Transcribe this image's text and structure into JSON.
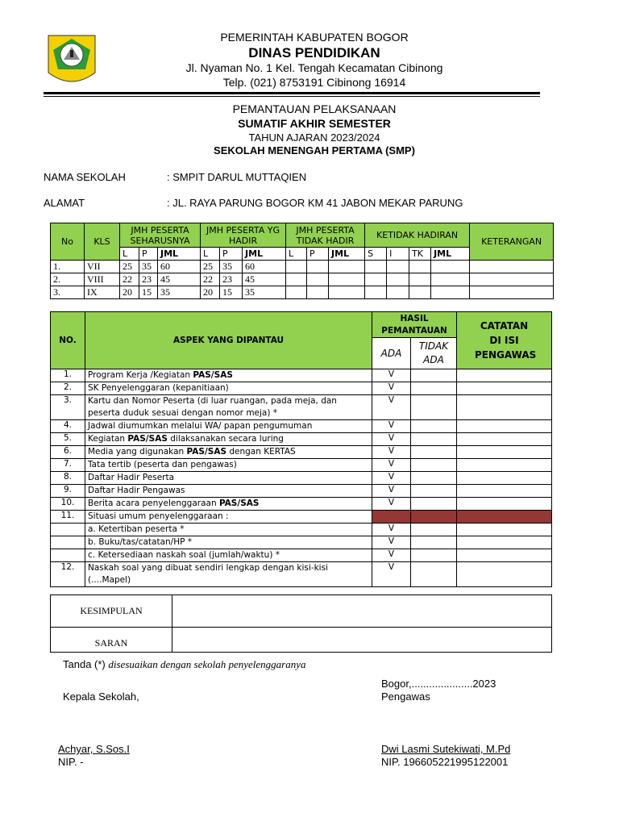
{
  "header": {
    "line1": "PEMERINTAH  KABUPATEN BOGOR",
    "line2": "DINAS PENDIDIKAN",
    "line3": "Jl. Nyaman No. 1  Kel. Tengah  Kecamatan Cibinong",
    "line4": "Telp. (021) 8753191 Cibinong 16914",
    "logo_text": "TEGAR BERIMAN"
  },
  "title": {
    "line1": "PEMANTAUAN PELAKSANAAN",
    "line2": "SUMATIF AKHIR SEMESTER",
    "line3": "TAHUN AJARAN 2023/2024",
    "line4": "SEKOLAH MENENGAH PERTAMA (SMP)"
  },
  "school": {
    "name_label": "NAMA SEKOLAH",
    "name_value": ":  SMPIT DARUL MUTTAQIEN",
    "addr_label": "ALAMAT",
    "addr_value": ":  JL. RAYA PARUNG BOGOR KM 41 JABON MEKAR PARUNG"
  },
  "table1": {
    "headers": {
      "no": "No",
      "kls": "KLS",
      "g1": "JMH PESERTA SEHARUSNYA",
      "g2": "JMH PESERTA YG HADIR",
      "g3": "JMH PESERTA TIDAK HADIR",
      "g4": "KETIDAK HADIRAN",
      "ket": "KETERANGAN",
      "l": "L",
      "p": "P",
      "jml": "JML",
      "s": "S",
      "i": "I",
      "tk": "TK"
    },
    "rows": [
      [
        "1.",
        "VII",
        "25",
        "35",
        "60",
        "25",
        "35",
        "60"
      ],
      [
        "2.",
        "VIII",
        "22",
        "23",
        "45",
        "22",
        "23",
        "45"
      ],
      [
        "3.",
        "IX",
        "20",
        "15",
        "35",
        "20",
        "15",
        "35"
      ]
    ]
  },
  "table2": {
    "headers": {
      "no": "NO.",
      "aspek": "ASPEK YANG DIPANTAU",
      "hasil": "HASIL PEMANTAUAN",
      "ada": "ADA",
      "tidak": "TIDAK ADA",
      "catatan": "CATATAN DI ISI PENGAWAS"
    },
    "rows": [
      {
        "no": "1.",
        "aspek": "Program Kerja /Kegiatan <b>PAS/SAS</b>",
        "ada": "V"
      },
      {
        "no": "2.",
        "aspek": "SK Penyelenggaran (kepanitiaan)",
        "ada": "V"
      },
      {
        "no": "3.",
        "aspek": "Kartu dan Nomor Peserta (di luar ruangan, pada meja, dan peserta duduk sesuai dengan nomor meja) *",
        "ada": "V"
      },
      {
        "no": "4.",
        "aspek": "Jadwal  diumumkan melalui WA/ papan pengumuman",
        "ada": "V"
      },
      {
        "no": "5.",
        "aspek": "Kegiatan <b>PAS/SAS</b>  dilaksanakan secara   luring",
        "ada": "V"
      },
      {
        "no": "6.",
        "aspek": "Media yang digunakan <b>PAS/SAS</b> dengan KERTAS",
        "ada": "V"
      },
      {
        "no": "7.",
        "aspek": "Tata tertib (peserta dan pengawas)",
        "ada": "V"
      },
      {
        "no": "8.",
        "aspek": "Daftar Hadir Peserta",
        "ada": "V"
      },
      {
        "no": "9.",
        "aspek": "Daftar Hadir Pengawas",
        "ada": "V"
      },
      {
        "no": "10.",
        "aspek": "Berita acara penyelenggaraan <b>PAS/SAS</b>",
        "ada": "V"
      },
      {
        "no": "11.",
        "aspek": "Situasi umum penyelenggaraan :",
        "ada": "",
        "red": true
      },
      {
        "no": "",
        "aspek": "a.   Ketertiban peserta *",
        "ada": "V"
      },
      {
        "no": "",
        "aspek": "b.   Buku/tas/catatan/HP *",
        "ada": "V"
      },
      {
        "no": "",
        "aspek": "c.   Ketersediaan naskah soal (jumlah/waktu) *",
        "ada": "V"
      },
      {
        "no": "12.",
        "aspek": "Naskah soal yang dibuat sendiri lengkap dengan kisi-kisi (....Mapel)",
        "ada": "V"
      }
    ]
  },
  "table3": {
    "kesimpulan": "KESIMPULAN",
    "saran": "SARAN"
  },
  "footer": {
    "tanda": "Tanda (*) ",
    "tanda_note": "disesuaikan dengan sekolah penyelenggaranya",
    "place_date": "Bogor,.....................2023",
    "pengawas": "Pengawas",
    "kepala": "Kepala Sekolah,",
    "kepala_name": "Achyar, S.Sos.I",
    "kepala_nip": "NIP.    -",
    "pengawas_name": "Dwi Lasmi Sutekiwati, M.Pd",
    "pengawas_nip": "NIP. 196605221995122001"
  },
  "colors": {
    "header_green": "#92d050",
    "marked_red": "#953735"
  }
}
